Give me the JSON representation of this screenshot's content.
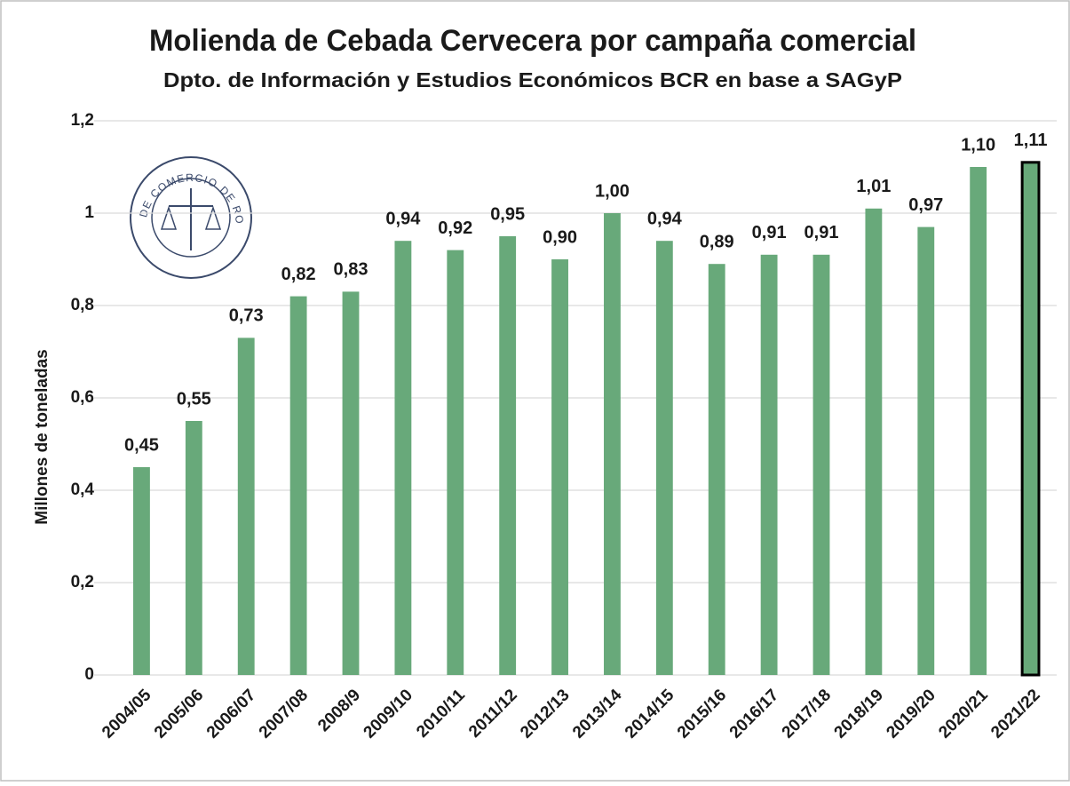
{
  "chart_data": {
    "type": "bar",
    "title": "Molienda de Cebada Cervecera por campaña comercial",
    "subtitle": "Dpto. de Información y Estudios Económicos BCR en base a SAGyP",
    "y_axis_label": "Millones de toneladas",
    "logo_text": "BOLSA DE COMERCIO DE ROSARIO",
    "categories": [
      "2004/05",
      "2005/06",
      "2006/07",
      "2007/08",
      "2008/9",
      "2009/10",
      "2010/11",
      "2011/12",
      "2012/13",
      "2013/14",
      "2014/15",
      "2015/16",
      "2016/17",
      "2017/18",
      "2018/19",
      "2019/20",
      "2020/21",
      "2021/22"
    ],
    "values": [
      0.45,
      0.55,
      0.73,
      0.82,
      0.83,
      0.94,
      0.92,
      0.95,
      0.9,
      1.0,
      0.94,
      0.89,
      0.91,
      0.91,
      1.01,
      0.97,
      1.1,
      1.11
    ],
    "value_labels": [
      "0,45",
      "0,55",
      "0,73",
      "0,82",
      "0,83",
      "0,94",
      "0,92",
      "0,95",
      "0,90",
      "1,00",
      "0,94",
      "0,89",
      "0,91",
      "0,91",
      "1,01",
      "0,97",
      "1,10",
      "1,11"
    ],
    "color": "#68a97a",
    "highlight_category": "2021/22",
    "highlight_edge_color": "#000000",
    "ylim": [
      0,
      1.2
    ],
    "yticks": [
      0,
      {
        "value": 0.2,
        "label": "0,2"
      },
      {
        "value": 0.4,
        "label": "0,4"
      },
      {
        "value": 0.6,
        "label": "0,6"
      },
      {
        "value": 0.8,
        "label": "0,8"
      },
      1,
      {
        "value": 1.2,
        "label": "1,2"
      }
    ],
    "grid": true
  }
}
